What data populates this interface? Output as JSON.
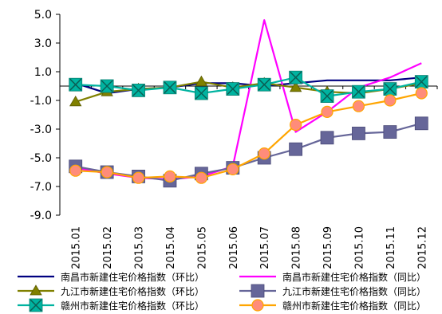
{
  "chart_data": {
    "type": "line",
    "categories": [
      "2015.01",
      "2015.02",
      "2015.03",
      "2015.04",
      "2015.05",
      "2015.06",
      "2015.07",
      "2015.08",
      "2015.09",
      "2015.10",
      "2015.11",
      "2015.12"
    ],
    "ylim": [
      -9.0,
      5.0
    ],
    "yticks": [
      5.0,
      3.0,
      1.0,
      -1.0,
      -3.0,
      -5.0,
      -7.0,
      -9.0
    ],
    "ytick_labels": [
      "5.0",
      "3.0",
      "1.0",
      "-1.0",
      "-3.0",
      "-5.0",
      "-7.0",
      "-9.0"
    ],
    "legend_position": "bottom",
    "grid": false,
    "series": [
      {
        "name": "南昌市新建住宅价格指数（环比）",
        "color": "#000080",
        "marker": "none",
        "values": [
          0.2,
          -0.5,
          -0.2,
          -0.1,
          0.2,
          0.2,
          0.0,
          0.2,
          0.4,
          0.4,
          0.4,
          0.6
        ]
      },
      {
        "name": "南昌市新建住宅价格指数（同比）",
        "color": "#ff00ff",
        "marker": "none",
        "values": [
          -5.7,
          -6.1,
          -6.4,
          -6.5,
          -6.3,
          -5.6,
          4.6,
          -3.2,
          -1.8,
          -0.1,
          0.6,
          1.6
        ]
      },
      {
        "name": "九江市新建住宅价格指数（环比）",
        "color": "#808000",
        "marker": "triangle",
        "values": [
          -1.1,
          -0.4,
          -0.2,
          -0.1,
          0.3,
          -0.1,
          0.2,
          -0.1,
          -0.4,
          -0.5,
          -0.2,
          0.2
        ]
      },
      {
        "name": "九江市新建住宅价格指数（同比）",
        "color": "#666699",
        "marker": "square",
        "values": [
          -5.6,
          -6.0,
          -6.3,
          -6.6,
          -6.1,
          -5.7,
          -5.0,
          -4.4,
          -3.6,
          -3.3,
          -3.2,
          -2.6
        ]
      },
      {
        "name": "赣州市新建住宅价格指数（环比）",
        "color": "#00b3a0",
        "marker": "xbox",
        "values": [
          0.1,
          0.0,
          -0.3,
          -0.1,
          -0.5,
          -0.2,
          0.1,
          0.6,
          -0.7,
          -0.4,
          -0.2,
          0.3
        ]
      },
      {
        "name": "赣州市新建住宅价格指数（同比）",
        "color": "#ffa500",
        "marker": "circle",
        "values": [
          -5.9,
          -6.0,
          -6.4,
          -6.3,
          -6.4,
          -5.8,
          -4.7,
          -2.7,
          -1.8,
          -1.4,
          -1.0,
          -0.5
        ]
      }
    ]
  }
}
